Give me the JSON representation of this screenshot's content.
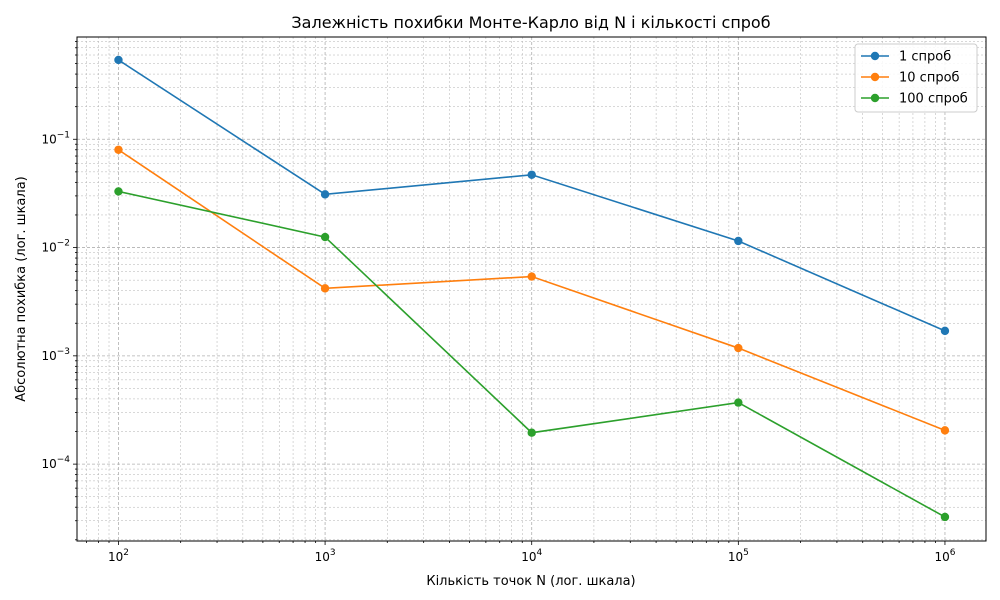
{
  "chart_data": {
    "type": "line",
    "title": "Залежність похибки Монте-Карло від N і кількості спроб",
    "xlabel": "Кількість точок N (лог. шкала)",
    "ylabel": "Абсолютна похибка (лог. шкала)",
    "x_scale": "log",
    "y_scale": "log",
    "x": [
      100,
      1000,
      10000,
      100000,
      1000000
    ],
    "xlim": [
      63,
      1580000
    ],
    "ylim": [
      1.95e-05,
      0.88
    ],
    "grid": true,
    "legend_position": "top-right",
    "x_ticks": [
      {
        "value": 100,
        "base": "10",
        "exp": "2"
      },
      {
        "value": 1000,
        "base": "10",
        "exp": "3"
      },
      {
        "value": 10000,
        "base": "10",
        "exp": "4"
      },
      {
        "value": 100000,
        "base": "10",
        "exp": "5"
      },
      {
        "value": 1000000,
        "base": "10",
        "exp": "6"
      }
    ],
    "y_ticks": [
      {
        "value": 0.0001,
        "base": "10",
        "exp": "−4"
      },
      {
        "value": 0.001,
        "base": "10",
        "exp": "−3"
      },
      {
        "value": 0.01,
        "base": "10",
        "exp": "−2"
      },
      {
        "value": 0.1,
        "base": "10",
        "exp": "−1"
      }
    ],
    "series": [
      {
        "name": "1 спроб",
        "color": "#1f77b4",
        "values": [
          0.54,
          0.031,
          0.047,
          0.0115,
          0.0017
        ]
      },
      {
        "name": "10 спроб",
        "color": "#ff7f0e",
        "values": [
          0.08,
          0.0042,
          0.0054,
          0.00118,
          0.000205
        ]
      },
      {
        "name": "100 спроб",
        "color": "#2ca02c",
        "values": [
          0.033,
          0.0125,
          0.000195,
          0.00037,
          3.25e-05
        ]
      }
    ]
  }
}
